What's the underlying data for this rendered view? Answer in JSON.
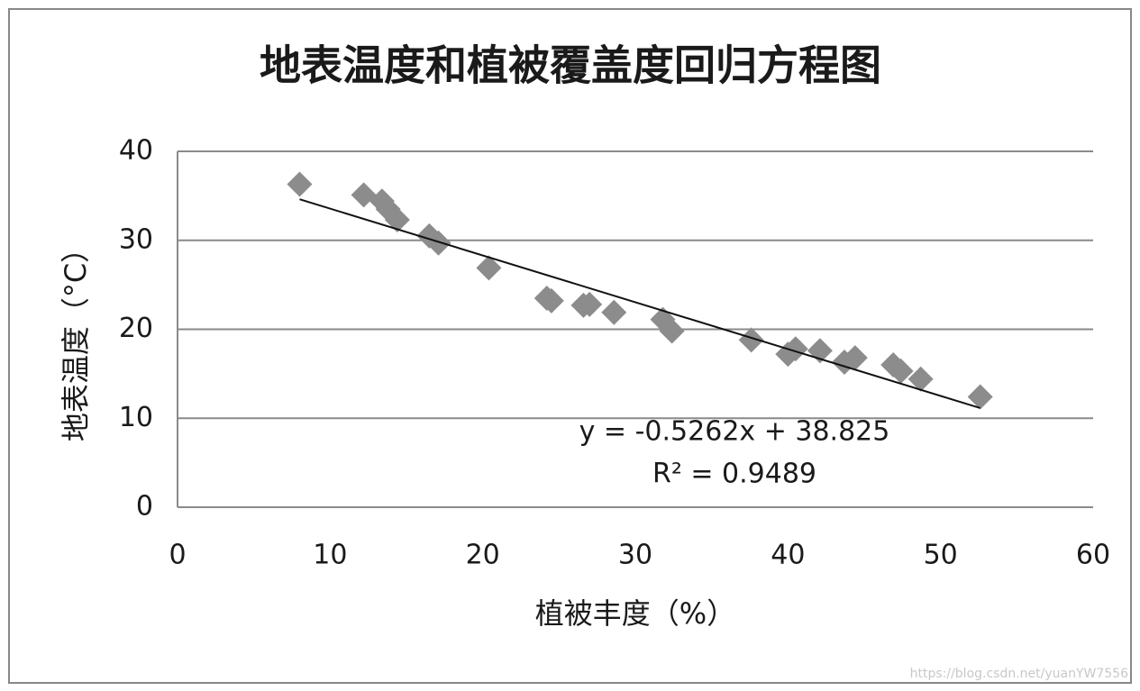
{
  "chart_data": {
    "type": "scatter",
    "title": "地表温度和植被覆盖度回归方程图",
    "x_label": "植被丰度（%）",
    "y_label": "地表温度（°C）",
    "series": [
      {
        "name": "地表温度",
        "color": "#8c8c8c",
        "x": [
          8.0,
          12.2,
          13.4,
          13.8,
          14.4,
          16.5,
          17.1,
          20.4,
          24.2,
          24.5,
          26.6,
          27.0,
          28.6,
          31.8,
          32.4,
          37.6,
          40.0,
          40.5,
          42.1,
          43.7,
          44.4,
          46.9,
          47.4,
          48.7,
          52.6
        ],
        "values": [
          36.3,
          35.1,
          34.4,
          33.5,
          32.3,
          30.5,
          29.7,
          26.9,
          23.5,
          23.2,
          22.7,
          22.8,
          21.9,
          21.1,
          19.8,
          18.8,
          17.2,
          17.8,
          17.6,
          16.3,
          16.8,
          16.0,
          15.3,
          14.4,
          12.4
        ]
      }
    ],
    "trendline": {
      "slope": -0.5262,
      "intercept": 38.825,
      "equation": "y = -0.5262x + 38.825",
      "r_squared": "R² = 0.9489"
    },
    "xlim": [
      0,
      60
    ],
    "xticks": [
      0,
      10,
      20,
      30,
      40,
      50,
      60
    ],
    "ylim": [
      0,
      40
    ],
    "yticks": [
      0,
      10,
      20,
      30,
      40
    ],
    "grid": true,
    "watermark": "https://blog.csdn.net/yuanYW7556"
  }
}
